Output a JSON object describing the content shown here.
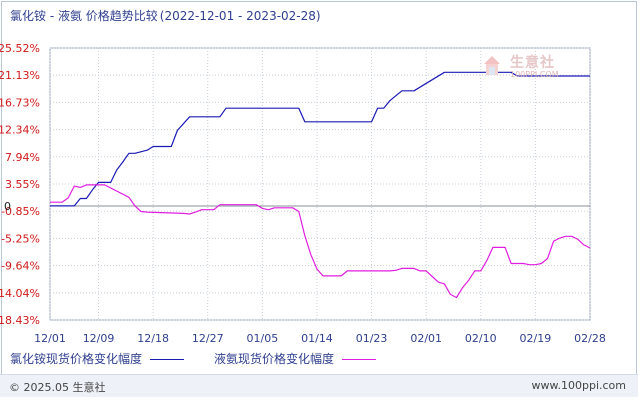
{
  "title": "氯化铵 - 液氨 价格趋势比较",
  "subtitle": "(2022-12-01 - 2023-02-28)",
  "watermark": {
    "name": "生意社",
    "url": "100PPI.COM"
  },
  "footer": {
    "copyright": "© 2025.05 生意社",
    "site": "www.100ppi.com"
  },
  "chart_data": {
    "type": "line",
    "title": "氯化铵 - 液氨 价格趋势比较",
    "subtitle": "(2022-12-01 - 2023-02-28)",
    "xlabel": "",
    "ylabel": "",
    "x_tick_labels": [
      "12/01",
      "12/09",
      "12/18",
      "12/27",
      "01/05",
      "01/14",
      "01/23",
      "02/01",
      "02/10",
      "02/19",
      "02/28"
    ],
    "x_tick_days": [
      0,
      8,
      17,
      26,
      35,
      44,
      53,
      62,
      71,
      80,
      89
    ],
    "y_tick_labels": [
      "25.52%",
      "21.13%",
      "16.73%",
      "12.34%",
      "7.94%",
      "3.55%",
      "-0.85%",
      "-5.25%",
      "-9.64%",
      "-14.04%",
      "-18.43%"
    ],
    "y_ticks": [
      25.52,
      21.13,
      16.73,
      12.34,
      7.94,
      3.55,
      -0.85,
      -5.25,
      -9.64,
      -14.04,
      -18.43
    ],
    "zero_label": "0",
    "ylim": [
      -18.43,
      25.52
    ],
    "xlim": [
      0,
      89
    ],
    "grid": true,
    "legend_position": "bottom",
    "series": [
      {
        "name": "氯化铵现货价格变化幅度",
        "color": "#1b1bb6",
        "x": [
          0,
          4,
          5,
          6,
          7,
          8,
          10,
          11,
          12,
          13,
          14,
          16,
          17,
          20,
          21,
          23,
          24,
          28,
          29,
          31,
          32,
          41,
          42,
          53,
          54,
          55,
          56,
          58,
          60,
          65,
          66,
          76,
          77,
          78,
          89
        ],
        "y": [
          0.0,
          0.0,
          1.2,
          1.2,
          2.6,
          3.8,
          3.8,
          5.8,
          7.1,
          8.5,
          8.5,
          9.0,
          9.6,
          9.6,
          12.2,
          14.4,
          14.4,
          14.4,
          15.8,
          15.8,
          15.8,
          15.8,
          13.6,
          13.6,
          15.8,
          15.8,
          17.0,
          18.6,
          18.6,
          21.6,
          21.6,
          21.6,
          21.0,
          21.0,
          21.0
        ]
      },
      {
        "name": "液氨现货价格变化幅度",
        "color": "#e01ee0",
        "x": [
          0,
          2,
          3,
          4,
          5,
          6,
          9,
          10,
          13,
          14,
          15,
          16,
          22,
          23,
          24,
          25,
          27,
          28,
          29,
          30,
          34,
          35,
          36,
          37,
          38,
          40,
          41,
          42,
          43,
          44,
          45,
          48,
          49,
          55,
          56,
          57,
          58,
          59,
          60,
          61,
          62,
          63,
          64,
          65,
          66,
          67,
          68,
          69,
          70,
          71,
          72,
          73,
          74,
          75,
          76,
          77,
          78,
          79,
          80,
          81,
          82,
          83,
          84,
          85,
          86,
          87,
          88,
          89
        ],
        "y": [
          0.6,
          0.6,
          1.3,
          3.2,
          3.0,
          3.4,
          3.4,
          2.9,
          1.4,
          0.0,
          -0.9,
          -1.0,
          -1.2,
          -1.3,
          -1.0,
          -0.6,
          -0.6,
          0.2,
          0.2,
          0.2,
          0.2,
          -0.4,
          -0.6,
          -0.3,
          -0.3,
          -0.3,
          -0.9,
          -4.8,
          -7.9,
          -10.2,
          -11.3,
          -11.3,
          -10.5,
          -10.5,
          -10.5,
          -10.4,
          -10.1,
          -10.1,
          -10.1,
          -10.5,
          -10.5,
          -11.4,
          -12.3,
          -12.6,
          -14.3,
          -14.8,
          -13.2,
          -12.0,
          -10.5,
          -10.5,
          -8.8,
          -6.7,
          -6.7,
          -6.7,
          -9.3,
          -9.3,
          -9.3,
          -9.5,
          -9.5,
          -9.3,
          -8.5,
          -5.7,
          -5.2,
          -4.9,
          -4.9,
          -5.4,
          -6.3,
          -6.8
        ]
      }
    ]
  }
}
